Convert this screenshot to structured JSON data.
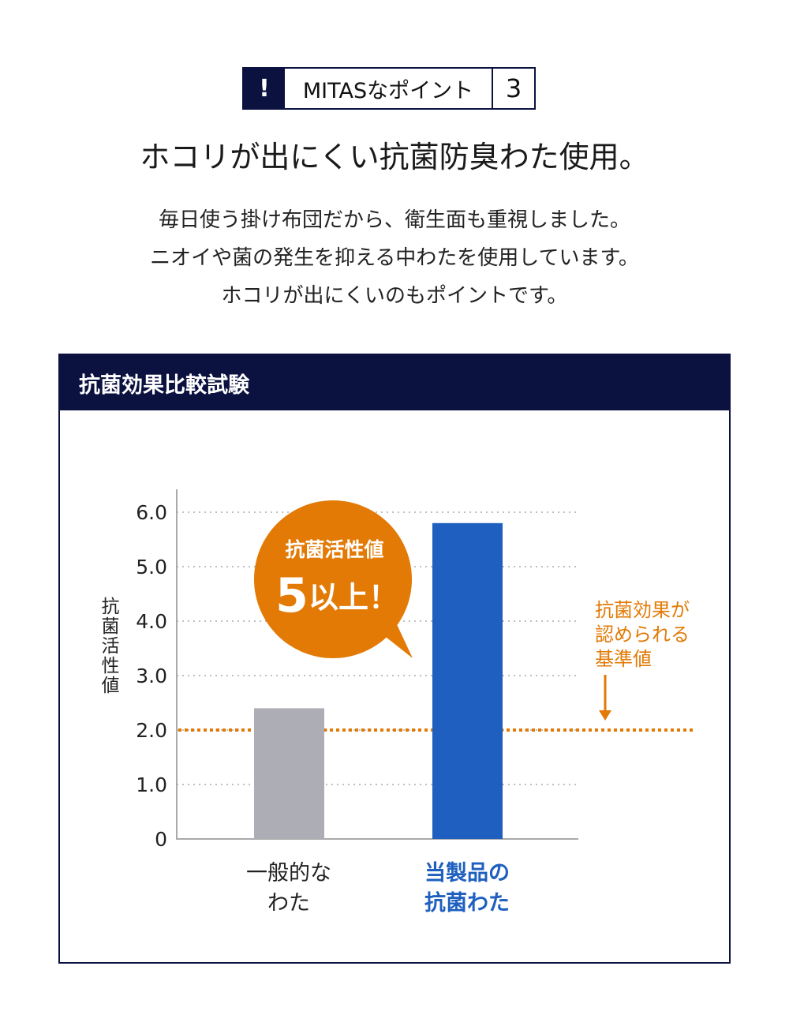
{
  "badge": {
    "icon": "exclamation-icon",
    "mark": "!",
    "label": "MITASなポイント",
    "number": "3"
  },
  "title": "ホコリが出にくい抗菌防臭わた使用。",
  "description": [
    "毎日使う掛け布団だから、衛生面も重視しました。",
    "ニオイや菌の発生を抑える中わたを使用しています。",
    "ホコリが出にくいのもポイントです。"
  ],
  "panel": {
    "header": "抗菌効果比較試験"
  },
  "colors": {
    "navy": "#0c1240",
    "gray_bar": "#adadb6",
    "blue_bar": "#1e5fbf",
    "orange": "#e27a05"
  },
  "chart_data": {
    "type": "bar",
    "title": "",
    "ylabel": "抗菌活性値",
    "xlabel": "",
    "ylim": [
      0,
      6
    ],
    "yticks": [
      "0",
      "1.0",
      "2.0",
      "3.0",
      "4.0",
      "5.0",
      "6.0"
    ],
    "grid": true,
    "categories": [
      [
        "一般的な",
        "わた"
      ],
      [
        "当製品の",
        "抗菌わた"
      ]
    ],
    "values": [
      2.4,
      5.8
    ],
    "reference_line": {
      "value": 2.0,
      "label": [
        "抗菌効果が",
        "認められる",
        "基準値"
      ]
    },
    "callout": {
      "line1": "抗菌活性値",
      "big": "5",
      "rest": "以上！"
    }
  }
}
